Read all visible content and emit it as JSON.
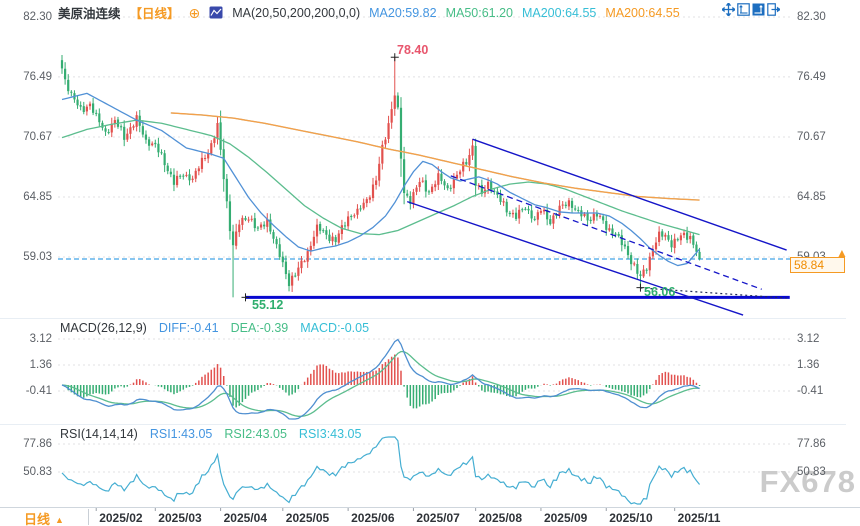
{
  "header": {
    "symbol": "美原油连续",
    "period_tag": "【日线】",
    "ma_settings": "MA(20,50,200,200,0,0)",
    "ma20": "MA20:59.82",
    "ma50": "MA50:61.20",
    "ma200a": "MA200:64.55",
    "ma200b": "MA200:64.55"
  },
  "macd_header": {
    "title": "MACD(26,12,9)",
    "diff": "DIFF:-0.41",
    "dea": "DEA:-0.39",
    "macd": "MACD:-0.05"
  },
  "rsi_header": {
    "title": "RSI(14,14,14)",
    "rsi1": "RSI1:43.05",
    "rsi2": "RSI2:43.05",
    "rsi3": "RSI3:43.05"
  },
  "price_pointer": {
    "axis_price": "59.03",
    "current_price": "58.84"
  },
  "annotations": {
    "spike_high": "78.40",
    "support_level": "55.12",
    "recent_low": "56.06"
  },
  "bottom_bar": {
    "period": "日线"
  },
  "watermark": "FX678",
  "colors": {
    "up": "#e2514e",
    "down": "#35ad72",
    "ma20": "#5191d6",
    "ma50": "#5cbd8e",
    "ma200_cyan": "#54c8dc",
    "ma200_orange": "#f5a04a",
    "trend_blue": "#1515c8",
    "support_blue": "#0808d0",
    "dotted_dark": "#222a55",
    "current_line": "#41a4e6",
    "grid": "#e0e0e3",
    "axis_text": "#5c6066",
    "macd_diff": "#4f8fd0",
    "macd_dea": "#5cbd8e",
    "rsi_line": "#45aed2"
  },
  "chart_data": {
    "type": "candlestick",
    "title": "美原油连续 日线 (WTI crude continuous, daily)",
    "price_ticks": [
      82.3,
      76.49,
      70.67,
      64.85,
      59.03
    ],
    "macd_ticks": [
      3.12,
      1.36,
      -0.41
    ],
    "rsi_ticks": [
      77.86,
      50.83
    ],
    "x_labels": [
      {
        "label": "2025/02",
        "day": 11
      },
      {
        "label": "2025/03",
        "day": 30
      },
      {
        "label": "2025/04",
        "day": 51
      },
      {
        "label": "2025/05",
        "day": 71
      },
      {
        "label": "2025/06",
        "day": 92
      },
      {
        "label": "2025/07",
        "day": 113
      },
      {
        "label": "2025/08",
        "day": 133
      },
      {
        "label": "2025/09",
        "day": 154
      },
      {
        "label": "2025/10",
        "day": 175
      },
      {
        "label": "2025/11",
        "day": 197
      }
    ],
    "days_total": 206,
    "current_price": 58.84,
    "ylim": [
      53.0,
      82.3
    ],
    "close_keyframes": [
      [
        0,
        77.3
      ],
      [
        1,
        76.2
      ],
      [
        3,
        74.8
      ],
      [
        6,
        73.2
      ],
      [
        9,
        73.9
      ],
      [
        11,
        72.6
      ],
      [
        14,
        71.1
      ],
      [
        17,
        72.2
      ],
      [
        20,
        70.7
      ],
      [
        24,
        72.4
      ],
      [
        27,
        70.3
      ],
      [
        30,
        69.8
      ],
      [
        33,
        68.2
      ],
      [
        36,
        66.3
      ],
      [
        39,
        67.0
      ],
      [
        42,
        66.6
      ],
      [
        45,
        68.3
      ],
      [
        48,
        69.9
      ],
      [
        50,
        71.7
      ],
      [
        52,
        66.8
      ],
      [
        54,
        61.8
      ],
      [
        55,
        60.2
      ],
      [
        57,
        62.3
      ],
      [
        60,
        63.0
      ],
      [
        63,
        61.6
      ],
      [
        66,
        62.6
      ],
      [
        69,
        60.0
      ],
      [
        71,
        58.3
      ],
      [
        73,
        56.6
      ],
      [
        76,
        57.8
      ],
      [
        79,
        59.5
      ],
      [
        82,
        61.9
      ],
      [
        85,
        61.2
      ],
      [
        88,
        60.6
      ],
      [
        92,
        62.9
      ],
      [
        95,
        63.4
      ],
      [
        98,
        64.6
      ],
      [
        101,
        66.5
      ],
      [
        103,
        69.5
      ],
      [
        105,
        72.0
      ],
      [
        107,
        74.9
      ],
      [
        108,
        73.2
      ],
      [
        109,
        68.6
      ],
      [
        110,
        65.2
      ],
      [
        112,
        64.6
      ],
      [
        115,
        66.3
      ],
      [
        118,
        65.4
      ],
      [
        121,
        66.8
      ],
      [
        124,
        65.6
      ],
      [
        127,
        66.9
      ],
      [
        130,
        68.3
      ],
      [
        132,
        69.8
      ],
      [
        133,
        66.2
      ],
      [
        135,
        65.1
      ],
      [
        137,
        66.2
      ],
      [
        140,
        64.9
      ],
      [
        143,
        63.6
      ],
      [
        146,
        63.0
      ],
      [
        149,
        63.8
      ],
      [
        152,
        62.7
      ],
      [
        154,
        63.6
      ],
      [
        157,
        62.5
      ],
      [
        160,
        63.7
      ],
      [
        163,
        64.4
      ],
      [
        166,
        63.3
      ],
      [
        169,
        62.7
      ],
      [
        172,
        63.2
      ],
      [
        175,
        61.9
      ],
      [
        178,
        61.3
      ],
      [
        181,
        59.8
      ],
      [
        184,
        58.2
      ],
      [
        186,
        57.0
      ],
      [
        188,
        58.0
      ],
      [
        190,
        59.9
      ],
      [
        192,
        61.2
      ],
      [
        194,
        61.0
      ],
      [
        196,
        60.4
      ],
      [
        199,
        61.0
      ],
      [
        202,
        61.0
      ],
      [
        204,
        59.7
      ],
      [
        205,
        58.84
      ]
    ],
    "ma20_keyframes": [
      [
        0,
        74.3
      ],
      [
        8,
        74.9
      ],
      [
        16,
        73.6
      ],
      [
        24,
        72.3
      ],
      [
        32,
        71.3
      ],
      [
        40,
        69.6
      ],
      [
        48,
        69.0
      ],
      [
        52,
        68.6
      ],
      [
        56,
        66.7
      ],
      [
        60,
        64.8
      ],
      [
        64,
        63.3
      ],
      [
        68,
        62.1
      ],
      [
        72,
        61.0
      ],
      [
        76,
        60.0
      ],
      [
        80,
        59.6
      ],
      [
        84,
        59.9
      ],
      [
        88,
        60.1
      ],
      [
        92,
        60.5
      ],
      [
        96,
        61.1
      ],
      [
        100,
        61.9
      ],
      [
        104,
        63.0
      ],
      [
        107,
        64.3
      ],
      [
        110,
        65.9
      ],
      [
        113,
        67.3
      ],
      [
        116,
        68.3
      ],
      [
        119,
        68.0
      ],
      [
        122,
        67.3
      ],
      [
        125,
        66.7
      ],
      [
        128,
        66.4
      ],
      [
        131,
        66.6
      ],
      [
        134,
        66.8
      ],
      [
        137,
        66.5
      ],
      [
        140,
        66.1
      ],
      [
        144,
        65.3
      ],
      [
        148,
        64.7
      ],
      [
        152,
        64.1
      ],
      [
        156,
        63.8
      ],
      [
        160,
        63.4
      ],
      [
        164,
        63.3
      ],
      [
        168,
        63.3
      ],
      [
        172,
        63.3
      ],
      [
        176,
        63.0
      ],
      [
        180,
        62.3
      ],
      [
        183,
        61.6
      ],
      [
        186,
        60.8
      ],
      [
        189,
        59.9
      ],
      [
        192,
        59.2
      ],
      [
        195,
        58.6
      ],
      [
        198,
        58.2
      ],
      [
        201,
        58.4
      ],
      [
        205,
        59.8
      ]
    ],
    "ma50_keyframes": [
      [
        0,
        70.6
      ],
      [
        8,
        71.4
      ],
      [
        16,
        71.9
      ],
      [
        24,
        72.3
      ],
      [
        32,
        72.0
      ],
      [
        40,
        71.4
      ],
      [
        48,
        70.8
      ],
      [
        54,
        70.0
      ],
      [
        60,
        68.7
      ],
      [
        66,
        67.2
      ],
      [
        72,
        65.6
      ],
      [
        78,
        64.0
      ],
      [
        84,
        62.8
      ],
      [
        90,
        61.8
      ],
      [
        96,
        61.3
      ],
      [
        102,
        61.2
      ],
      [
        108,
        61.6
      ],
      [
        114,
        62.4
      ],
      [
        120,
        63.2
      ],
      [
        126,
        64.0
      ],
      [
        132,
        64.9
      ],
      [
        138,
        65.6
      ],
      [
        144,
        66.1
      ],
      [
        150,
        66.3
      ],
      [
        156,
        66.1
      ],
      [
        162,
        65.6
      ],
      [
        168,
        64.9
      ],
      [
        174,
        64.2
      ],
      [
        180,
        63.5
      ],
      [
        186,
        62.9
      ],
      [
        192,
        62.3
      ],
      [
        198,
        61.8
      ],
      [
        205,
        61.2
      ]
    ],
    "ma200_keyframes": [
      [
        35,
        73.0
      ],
      [
        45,
        72.8
      ],
      [
        55,
        72.5
      ],
      [
        65,
        72.0
      ],
      [
        75,
        71.4
      ],
      [
        85,
        70.8
      ],
      [
        95,
        70.2
      ],
      [
        105,
        69.5
      ],
      [
        115,
        68.9
      ],
      [
        125,
        68.2
      ],
      [
        135,
        67.5
      ],
      [
        145,
        66.8
      ],
      [
        155,
        66.2
      ],
      [
        165,
        65.7
      ],
      [
        175,
        65.3
      ],
      [
        185,
        64.9
      ],
      [
        195,
        64.7
      ],
      [
        205,
        64.55
      ]
    ],
    "wick_overrides": [
      {
        "day": 55,
        "low": 55.12
      },
      {
        "day": 73,
        "low": 55.7
      },
      {
        "day": 107,
        "high": 78.4
      },
      {
        "day": 132,
        "high": 70.45
      },
      {
        "day": 186,
        "low": 56.06
      },
      {
        "day": 205,
        "close": 58.84
      }
    ],
    "indicators": {
      "macd_params": [
        26,
        12,
        9
      ],
      "macd_last": {
        "diff": -0.41,
        "dea": -0.39,
        "macd": -0.05
      },
      "rsi_params": [
        14,
        14,
        14
      ],
      "rsi_last": 43.05
    },
    "levels": {
      "support": 55.12,
      "current": 58.84
    },
    "trendlines": [
      {
        "name": "support-line",
        "d1": 59,
        "p1": 55.12,
        "d2": 234,
        "p2": 55.12,
        "style": "thick"
      },
      {
        "name": "channel-upper",
        "d1": 132,
        "p1": 70.45,
        "d2": 233,
        "p2": 59.7,
        "style": "solid"
      },
      {
        "name": "channel-lower",
        "d1": 111,
        "p1": 64.4,
        "d2": 219,
        "p2": 53.4,
        "style": "solid"
      },
      {
        "name": "inner-dashed",
        "d1": 125,
        "p1": 66.9,
        "d2": 225,
        "p2": 55.9,
        "style": "dashed"
      },
      {
        "name": "low-dotted",
        "d1": 186,
        "p1": 56.03,
        "d2": 233,
        "p2": 55.05,
        "style": "dotted"
      }
    ],
    "anchor_marks": [
      {
        "day": 107,
        "price": 78.4
      },
      {
        "day": 59,
        "price": 55.12
      },
      {
        "day": 186,
        "price": 56.06
      }
    ]
  }
}
